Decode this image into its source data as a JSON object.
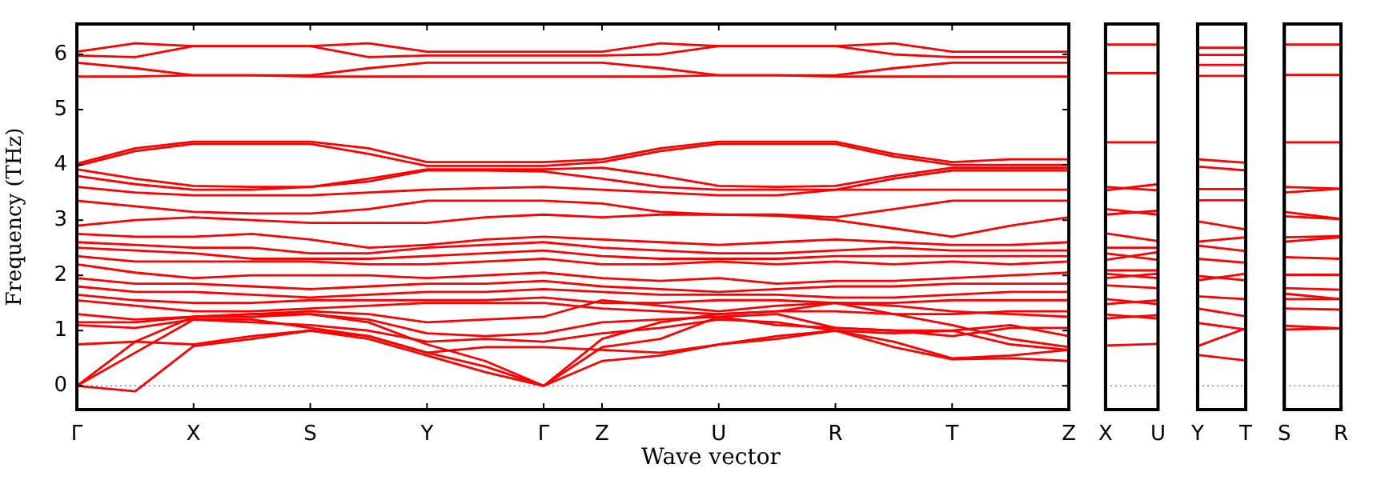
{
  "chart_data": [
    {
      "type": "line",
      "ylabel": "Frequency (THz)",
      "xlabel": "Wave vector",
      "color": "#ff0000",
      "ylim": [
        -0.43,
        6.55
      ],
      "yticks": [
        0,
        1,
        2,
        3,
        4,
        5,
        6
      ],
      "categories": [
        "Γ",
        null,
        "X",
        null,
        "S",
        null,
        "Y",
        null,
        "Γ",
        "Z",
        null,
        "U",
        null,
        "R",
        null,
        "T",
        null,
        "Z"
      ],
      "ref_lines": [
        {
          "axis": "y",
          "value": 0,
          "color": "#8080ff",
          "line_style": "dotted"
        }
      ],
      "series": [
        {
          "values": [
            6.05,
            6.2,
            6.15,
            6.15,
            6.15,
            6.2,
            6.05,
            6.05,
            6.05,
            6.05,
            6.2,
            6.15,
            6.15,
            6.15,
            6.2,
            6.05,
            6.05,
            6.05
          ]
        },
        {
          "values": [
            5.98,
            5.95,
            6.15,
            6.15,
            6.15,
            5.95,
            5.98,
            5.98,
            5.98,
            5.98,
            6.0,
            6.15,
            6.15,
            6.15,
            6.0,
            5.95,
            5.95,
            5.95
          ]
        },
        {
          "values": [
            5.85,
            5.75,
            5.62,
            5.62,
            5.62,
            5.75,
            5.85,
            5.85,
            5.85,
            5.85,
            5.75,
            5.62,
            5.62,
            5.62,
            5.75,
            5.85,
            5.85,
            5.85
          ]
        },
        {
          "values": [
            5.6,
            5.6,
            5.62,
            5.62,
            5.6,
            5.6,
            5.6,
            5.6,
            5.6,
            5.6,
            5.6,
            5.62,
            5.62,
            5.6,
            5.6,
            5.6,
            5.6,
            5.6
          ]
        },
        {
          "values": [
            4.02,
            4.3,
            4.42,
            4.42,
            4.42,
            4.3,
            4.05,
            4.05,
            4.05,
            4.1,
            4.3,
            4.42,
            4.42,
            4.42,
            4.2,
            4.05,
            4.1,
            4.1
          ]
        },
        {
          "values": [
            3.98,
            4.25,
            4.38,
            4.38,
            4.38,
            4.2,
            3.98,
            3.98,
            3.98,
            4.05,
            4.25,
            4.38,
            4.38,
            4.38,
            4.15,
            4.0,
            4.0,
            4.0
          ]
        },
        {
          "values": [
            3.92,
            3.75,
            3.62,
            3.6,
            3.6,
            3.75,
            3.92,
            3.92,
            3.92,
            3.95,
            3.8,
            3.62,
            3.6,
            3.62,
            3.8,
            3.95,
            3.95,
            3.95
          ]
        },
        {
          "values": [
            3.8,
            3.65,
            3.55,
            3.55,
            3.6,
            3.7,
            3.9,
            3.9,
            3.88,
            3.75,
            3.6,
            3.55,
            3.55,
            3.55,
            3.75,
            3.9,
            3.9,
            3.9
          ]
        },
        {
          "values": [
            3.6,
            3.5,
            3.45,
            3.45,
            3.45,
            3.5,
            3.55,
            3.58,
            3.6,
            3.55,
            3.5,
            3.45,
            3.45,
            3.55,
            3.55,
            3.55,
            3.55,
            3.55
          ]
        },
        {
          "values": [
            3.35,
            3.25,
            3.15,
            3.12,
            3.12,
            3.2,
            3.35,
            3.35,
            3.35,
            3.3,
            3.15,
            3.1,
            3.1,
            3.05,
            3.2,
            3.35,
            3.35,
            3.35
          ]
        },
        {
          "values": [
            2.9,
            3.0,
            3.05,
            3.0,
            2.95,
            2.95,
            2.95,
            3.05,
            3.1,
            3.05,
            3.1,
            3.1,
            3.08,
            3.0,
            2.85,
            2.7,
            2.9,
            3.05
          ]
        },
        {
          "values": [
            2.75,
            2.7,
            2.7,
            2.75,
            2.65,
            2.5,
            2.55,
            2.65,
            2.7,
            2.65,
            2.6,
            2.55,
            2.6,
            2.65,
            2.6,
            2.55,
            2.55,
            2.6
          ]
        },
        {
          "values": [
            2.6,
            2.55,
            2.5,
            2.5,
            2.4,
            2.4,
            2.5,
            2.55,
            2.6,
            2.5,
            2.45,
            2.4,
            2.4,
            2.45,
            2.5,
            2.45,
            2.45,
            2.45
          ]
        },
        {
          "values": [
            2.5,
            2.45,
            2.4,
            2.3,
            2.3,
            2.3,
            2.35,
            2.4,
            2.45,
            2.35,
            2.3,
            2.3,
            2.3,
            2.35,
            2.35,
            2.35,
            2.35,
            2.35
          ]
        },
        {
          "values": [
            2.35,
            2.25,
            2.25,
            2.25,
            2.25,
            2.2,
            2.2,
            2.25,
            2.3,
            2.2,
            2.2,
            2.25,
            2.2,
            2.25,
            2.2,
            2.25,
            2.2,
            2.25
          ]
        },
        {
          "values": [
            2.2,
            2.05,
            1.95,
            2.0,
            2.0,
            2.0,
            1.95,
            2.0,
            2.05,
            1.95,
            1.9,
            1.95,
            1.85,
            1.9,
            1.9,
            1.95,
            2.0,
            2.05
          ]
        },
        {
          "values": [
            1.95,
            1.85,
            1.85,
            1.8,
            1.75,
            1.8,
            1.85,
            1.85,
            1.9,
            1.8,
            1.75,
            1.7,
            1.75,
            1.8,
            1.8,
            1.85,
            1.85,
            1.85
          ]
        },
        {
          "values": [
            1.8,
            1.7,
            1.7,
            1.65,
            1.6,
            1.65,
            1.7,
            1.7,
            1.75,
            1.7,
            1.65,
            1.65,
            1.65,
            1.6,
            1.6,
            1.65,
            1.7,
            1.7
          ]
        },
        {
          "values": [
            1.65,
            1.55,
            1.5,
            1.5,
            1.55,
            1.55,
            1.55,
            1.55,
            1.6,
            1.5,
            1.5,
            1.55,
            1.55,
            1.5,
            1.5,
            1.55,
            1.55,
            1.55
          ]
        },
        {
          "values": [
            1.55,
            1.45,
            1.35,
            1.35,
            1.4,
            1.45,
            1.5,
            1.5,
            1.5,
            1.4,
            1.35,
            1.3,
            1.35,
            1.35,
            1.3,
            1.3,
            1.35,
            1.35
          ]
        },
        {
          "values": [
            1.3,
            1.2,
            1.25,
            1.3,
            1.35,
            1.3,
            1.15,
            1.2,
            1.25,
            1.55,
            1.45,
            1.35,
            1.45,
            1.5,
            1.45,
            1.35,
            1.3,
            1.25
          ]
        },
        {
          "values": [
            1.15,
            1.15,
            1.25,
            1.25,
            1.3,
            1.2,
            0.95,
            0.9,
            0.95,
            1.15,
            1.2,
            1.25,
            1.1,
            1.05,
            1.0,
            0.9,
            1.05,
            1.05
          ]
        },
        {
          "values": [
            1.1,
            1.05,
            1.2,
            1.15,
            1.1,
            1.0,
            0.8,
            0.85,
            0.8,
            0.95,
            1.05,
            1.2,
            1.15,
            1.0,
            0.95,
            1.0,
            1.1,
            0.9
          ]
        },
        {
          "values": [
            0.75,
            0.8,
            0.75,
            0.9,
            1.0,
            0.9,
            0.6,
            0.7,
            0.7,
            0.65,
            0.6,
            0.75,
            0.85,
            1.0,
            0.8,
            0.5,
            0.55,
            0.65
          ]
        },
        {
          "values": [
            0,
            -0.1,
            0.72,
            0.85,
            1.0,
            0.85,
            0.55,
            0.25,
            0,
            0.45,
            0.55,
            0.75,
            0.9,
            1.0,
            0.7,
            0.48,
            0.5,
            0.45
          ]
        },
        {
          "values": [
            0,
            0.6,
            1.2,
            1.2,
            1.05,
            0.9,
            0.6,
            0.35,
            0,
            0.7,
            0.85,
            1.25,
            1.3,
            1.05,
            1.0,
            1.0,
            0.75,
            0.65
          ]
        },
        {
          "values": [
            0,
            0.8,
            1.25,
            1.3,
            1.3,
            1.15,
            0.75,
            0.45,
            0,
            0.85,
            1.15,
            1.3,
            1.35,
            1.5,
            1.3,
            1.1,
            0.85,
            0.7
          ]
        }
      ]
    },
    {
      "type": "line",
      "color": "#ff0000",
      "ylim": [
        -0.43,
        6.55
      ],
      "tick_labels": "x",
      "categories": [
        "X",
        "U"
      ],
      "ref_lines": [
        {
          "axis": "y",
          "value": 0,
          "color": "#8080ff",
          "line_style": "dotted"
        }
      ],
      "series": [
        {
          "values": [
            6.18,
            6.18
          ]
        },
        {
          "values": [
            5.66,
            5.66
          ]
        },
        {
          "values": [
            4.41,
            4.41
          ]
        },
        {
          "values": [
            3.6,
            3.54
          ]
        },
        {
          "values": [
            3.54,
            3.65
          ]
        },
        {
          "values": [
            3.2,
            3.1
          ]
        },
        {
          "values": [
            3.1,
            3.17
          ]
        },
        {
          "values": [
            2.76,
            2.62
          ]
        },
        {
          "values": [
            2.5,
            2.5
          ]
        },
        {
          "values": [
            2.4,
            2.28
          ]
        },
        {
          "values": [
            2.28,
            2.42
          ]
        },
        {
          "values": [
            2.09,
            2.09
          ]
        },
        {
          "values": [
            2.03,
            1.95
          ]
        },
        {
          "values": [
            1.95,
            2.03
          ]
        },
        {
          "values": [
            1.82,
            1.77
          ]
        },
        {
          "values": [
            1.57,
            1.48
          ]
        },
        {
          "values": [
            1.48,
            1.55
          ]
        },
        {
          "values": [
            1.29,
            1.22
          ]
        },
        {
          "values": [
            1.22,
            1.28
          ]
        },
        {
          "values": [
            0.73,
            0.76
          ]
        }
      ]
    },
    {
      "type": "line",
      "color": "#ff0000",
      "ylim": [
        -0.43,
        6.55
      ],
      "tick_labels": "x",
      "categories": [
        "Y",
        "T"
      ],
      "ref_lines": [
        {
          "axis": "y",
          "value": 0,
          "color": "#8080ff",
          "line_style": "dotted"
        }
      ],
      "series": [
        {
          "values": [
            6.12,
            6.12
          ]
        },
        {
          "values": [
            5.99,
            5.99
          ]
        },
        {
          "values": [
            5.81,
            5.81
          ]
        },
        {
          "values": [
            5.61,
            5.61
          ]
        },
        {
          "values": [
            4.1,
            4.04
          ]
        },
        {
          "values": [
            3.97,
            3.9
          ]
        },
        {
          "values": [
            3.56,
            3.56
          ]
        },
        {
          "values": [
            3.36,
            3.36
          ]
        },
        {
          "values": [
            2.98,
            2.83
          ]
        },
        {
          "values": [
            2.61,
            2.69
          ]
        },
        {
          "values": [
            2.54,
            2.44
          ]
        },
        {
          "values": [
            2.3,
            2.23
          ]
        },
        {
          "values": [
            1.99,
            1.91
          ]
        },
        {
          "values": [
            1.91,
            2.03
          ]
        },
        {
          "values": [
            1.62,
            1.57
          ]
        },
        {
          "values": [
            1.4,
            1.26
          ]
        },
        {
          "values": [
            1.14,
            1.02
          ]
        },
        {
          "values": [
            0.72,
            1.04
          ]
        },
        {
          "values": [
            0.56,
            0.46
          ]
        }
      ]
    },
    {
      "type": "line",
      "color": "#ff0000",
      "ylim": [
        -0.43,
        6.55
      ],
      "tick_labels": "x",
      "categories": [
        "S",
        "R"
      ],
      "ref_lines": [
        {
          "axis": "y",
          "value": 0,
          "color": "#8080ff",
          "line_style": "dotted"
        }
      ],
      "series": [
        {
          "values": [
            6.18,
            6.18
          ]
        },
        {
          "values": [
            5.63,
            5.63
          ]
        },
        {
          "values": [
            4.41,
            4.41
          ]
        },
        {
          "values": [
            3.6,
            3.57
          ]
        },
        {
          "values": [
            3.5,
            3.57
          ]
        },
        {
          "values": [
            3.15,
            3.02
          ]
        },
        {
          "values": [
            3.07,
            3.02
          ]
        },
        {
          "values": [
            2.69,
            2.71
          ]
        },
        {
          "values": [
            2.61,
            2.69
          ]
        },
        {
          "values": [
            2.33,
            2.3
          ]
        },
        {
          "values": [
            2.01,
            2.01
          ]
        },
        {
          "values": [
            1.77,
            1.74
          ]
        },
        {
          "values": [
            1.67,
            1.57
          ]
        },
        {
          "values": [
            1.57,
            1.57
          ]
        },
        {
          "values": [
            1.4,
            1.38
          ]
        },
        {
          "values": [
            1.09,
            1.04
          ]
        },
        {
          "values": [
            1.02,
            1.04
          ]
        }
      ]
    }
  ]
}
